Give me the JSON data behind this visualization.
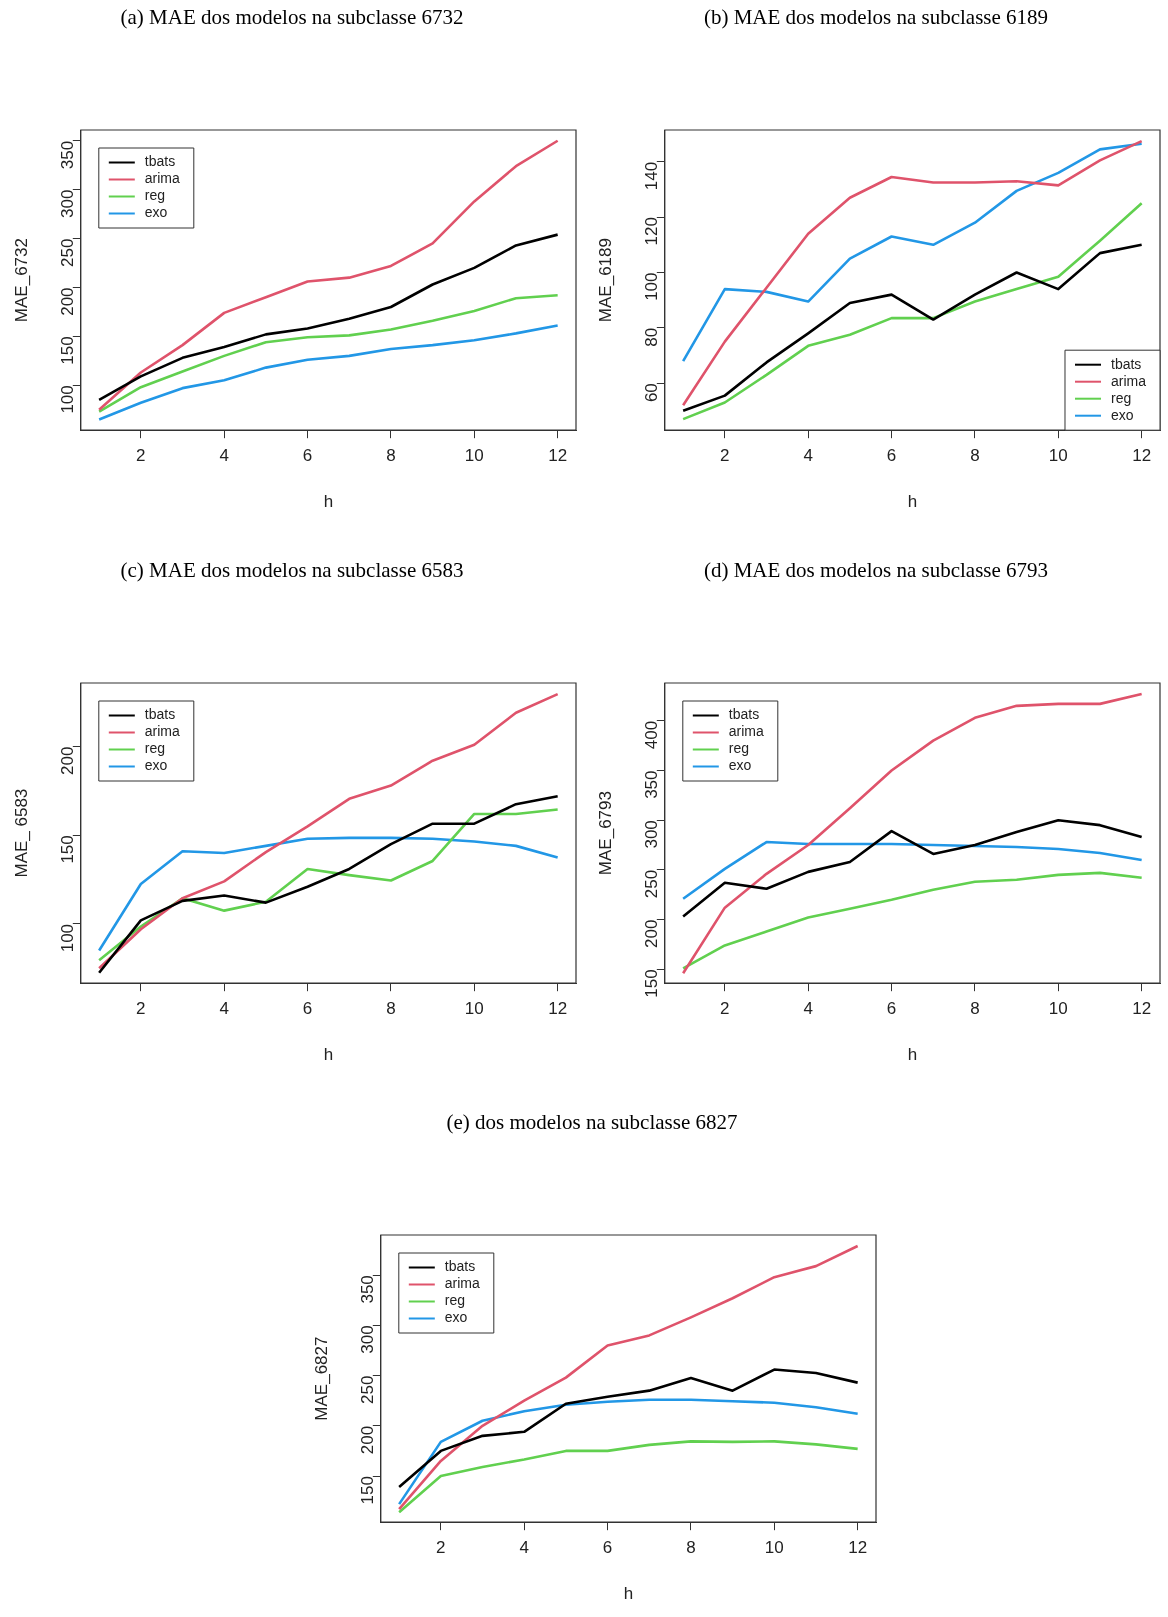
{
  "chart_data": [
    {
      "type": "line",
      "title": "(a) MAE dos modelos na subclasse 6732",
      "xlabel": "h",
      "ylabel": "MAE_6732",
      "x": [
        1,
        2,
        3,
        4,
        5,
        6,
        7,
        8,
        9,
        10,
        11,
        12
      ],
      "xlim": [
        0.56,
        12.44
      ],
      "xticks": [
        2,
        4,
        6,
        8,
        10,
        12
      ],
      "ylim": [
        54,
        361
      ],
      "yticks": [
        100,
        150,
        200,
        250,
        300,
        350
      ],
      "grid": false,
      "legend": "top left",
      "series": [
        {
          "name": "tbats",
          "color": "#000000",
          "values": [
            85,
            109,
            128,
            139,
            152,
            158,
            168,
            180,
            203,
            220,
            243,
            254
          ]
        },
        {
          "name": "arima",
          "color": "#df536b",
          "values": [
            75,
            113,
            141,
            174,
            190,
            206,
            210,
            222,
            245,
            288,
            324,
            350
          ]
        },
        {
          "name": "reg",
          "color": "#61d04f",
          "values": [
            73,
            98,
            114,
            130,
            144,
            149,
            151,
            157,
            166,
            176,
            189,
            192
          ]
        },
        {
          "name": "exo",
          "color": "#2297e6",
          "values": [
            65,
            82,
            97,
            105,
            118,
            126,
            130,
            137,
            141,
            146,
            153,
            161
          ]
        }
      ]
    },
    {
      "type": "line",
      "title": "(b) MAE dos modelos na subclasse 6189",
      "xlabel": "h",
      "ylabel": "MAE_6189",
      "x": [
        1,
        2,
        3,
        4,
        5,
        6,
        7,
        8,
        9,
        10,
        11,
        12
      ],
      "xlim": [
        0.56,
        12.44
      ],
      "xticks": [
        2,
        4,
        6,
        8,
        10,
        12
      ],
      "ylim": [
        43,
        151.5
      ],
      "yticks": [
        60,
        80,
        100,
        120,
        140
      ],
      "grid": false,
      "legend": "bottom right",
      "series": [
        {
          "name": "tbats",
          "color": "#000000",
          "values": [
            50,
            55.5,
            67.5,
            78,
            89,
            92,
            83,
            92,
            100,
            94,
            107,
            110
          ]
        },
        {
          "name": "arima",
          "color": "#df536b",
          "values": [
            52,
            75,
            94.5,
            114,
            127,
            134.5,
            132.5,
            132.5,
            133,
            131.5,
            140.5,
            147.5
          ]
        },
        {
          "name": "reg",
          "color": "#61d04f",
          "values": [
            47,
            53,
            63,
            73.5,
            77.5,
            83.5,
            83.5,
            89.5,
            94,
            98.5,
            111.5,
            125
          ]
        },
        {
          "name": "exo",
          "color": "#2297e6",
          "values": [
            68,
            94,
            93,
            89.5,
            105,
            113,
            110,
            118,
            129.5,
            136,
            144.5,
            146.5
          ]
        }
      ]
    },
    {
      "type": "line",
      "title": "(c) MAE dos modelos na subclasse 6583",
      "xlabel": "h",
      "ylabel": "MAE_ 6583",
      "x": [
        1,
        2,
        3,
        4,
        5,
        6,
        7,
        8,
        9,
        10,
        11,
        12
      ],
      "xlim": [
        0.56,
        12.44
      ],
      "xticks": [
        2,
        4,
        6,
        8,
        10,
        12
      ],
      "ylim": [
        66.6,
        235.8
      ],
      "yticks": [
        100,
        150,
        200
      ],
      "grid": false,
      "legend": "top left",
      "series": [
        {
          "name": "tbats",
          "color": "#000000",
          "values": [
            72.5,
            102,
            113,
            116,
            112,
            121,
            131,
            145,
            156.5,
            156.5,
            167.5,
            172
          ]
        },
        {
          "name": "arima",
          "color": "#df536b",
          "values": [
            75,
            97,
            114.5,
            124,
            140.5,
            155,
            170.5,
            178,
            192,
            201,
            219,
            229.5
          ]
        },
        {
          "name": "reg",
          "color": "#61d04f",
          "values": [
            79.5,
            98.5,
            114.5,
            107.5,
            112.5,
            131,
            127.5,
            124.5,
            135.5,
            162,
            162,
            164.5
          ]
        },
        {
          "name": "exo",
          "color": "#2297e6",
          "values": [
            85,
            122.5,
            141,
            140,
            144,
            148,
            148.5,
            148.5,
            148,
            146.5,
            144,
            137.5
          ]
        }
      ]
    },
    {
      "type": "line",
      "title": "(d) MAE dos modelos na subclasse 6793",
      "xlabel": "h",
      "ylabel": "MAE_6793",
      "x": [
        1,
        2,
        3,
        4,
        5,
        6,
        7,
        8,
        9,
        10,
        11,
        12
      ],
      "xlim": [
        0.56,
        12.44
      ],
      "xticks": [
        2,
        4,
        6,
        8,
        10,
        12
      ],
      "ylim": [
        136,
        438
      ],
      "yticks": [
        150,
        200,
        250,
        300,
        350,
        400
      ],
      "grid": false,
      "legend": "top left",
      "series": [
        {
          "name": "tbats",
          "color": "#000000",
          "values": [
            203,
            237,
            231,
            248,
            258,
            289,
            266,
            275,
            288,
            300,
            295,
            283
          ]
        },
        {
          "name": "arima",
          "color": "#df536b",
          "values": [
            146,
            212,
            246,
            275,
            312,
            350,
            380,
            403,
            415,
            417,
            417,
            427
          ]
        },
        {
          "name": "reg",
          "color": "#61d04f",
          "values": [
            151,
            174,
            188,
            202,
            211,
            220,
            230,
            238,
            240,
            245,
            247,
            242
          ]
        },
        {
          "name": "exo",
          "color": "#2297e6",
          "values": [
            221,
            251,
            278,
            276,
            276,
            276,
            275,
            274,
            273,
            271,
            267,
            260
          ]
        }
      ]
    },
    {
      "type": "line",
      "title": "(e) dos modelos na subclasse 6827",
      "xlabel": "h",
      "ylabel": "MAE_6827",
      "x": [
        1,
        2,
        3,
        4,
        5,
        6,
        7,
        8,
        9,
        10,
        11,
        12
      ],
      "xlim": [
        0.56,
        12.44
      ],
      "xticks": [
        2,
        4,
        6,
        8,
        10,
        12
      ],
      "ylim": [
        104,
        390
      ],
      "yticks": [
        150,
        200,
        250,
        300,
        350
      ],
      "grid": false,
      "legend": "top left",
      "series": [
        {
          "name": "tbats",
          "color": "#000000",
          "values": [
            139,
            175,
            190,
            194,
            222,
            229,
            235,
            247.5,
            235,
            256,
            252.5,
            243
          ]
        },
        {
          "name": "arima",
          "color": "#df536b",
          "values": [
            117,
            165,
            200,
            225,
            248,
            280,
            290,
            308,
            327,
            348,
            359,
            379
          ]
        },
        {
          "name": "reg",
          "color": "#61d04f",
          "values": [
            114,
            150,
            159,
            166.5,
            175,
            175,
            181,
            184.5,
            184,
            184.5,
            181.5,
            177
          ]
        },
        {
          "name": "exo",
          "color": "#2297e6",
          "values": [
            122,
            184,
            205,
            214.5,
            221,
            224,
            226,
            226,
            224.5,
            223,
            218.5,
            212
          ]
        }
      ]
    }
  ]
}
